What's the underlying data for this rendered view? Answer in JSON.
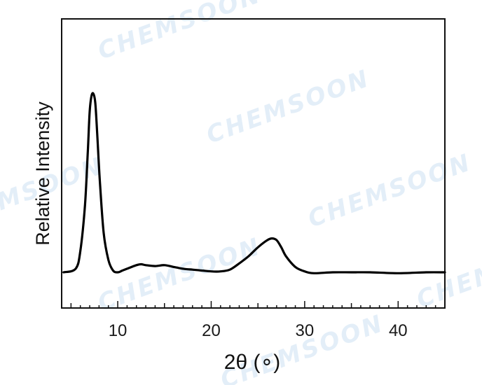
{
  "chart_data": {
    "type": "line",
    "title": "",
    "xlabel": "2θ (∘)",
    "ylabel": "Relative Intensity",
    "xlim": [
      4,
      45
    ],
    "ylim": [
      -0.2,
      1.42
    ],
    "xticks": [
      10,
      20,
      30,
      40
    ],
    "xtick_labels": [
      "10",
      "20",
      "30",
      "40"
    ],
    "y_ticks_shown": false,
    "grid": false,
    "legend": "none",
    "series": [
      {
        "x": [
          4.2,
          5.5,
          6.0,
          6.5,
          6.8,
          7.0,
          7.2,
          7.4,
          7.6,
          7.8,
          8.1,
          8.5,
          9.0,
          9.5,
          10.0,
          10.5,
          11.0,
          12.0,
          12.5,
          13.0,
          14.0,
          15.0,
          16.0,
          17.0,
          18.0,
          19.0,
          20.0,
          21.0,
          22.0,
          23.0,
          24.0,
          25.0,
          26.0,
          26.5,
          27.0,
          27.5,
          28.0,
          29.0,
          30.0,
          31.0,
          33.0,
          35.0,
          37.0,
          40.0,
          43.0,
          45.0
        ],
        "y": [
          0.0,
          0.02,
          0.12,
          0.38,
          0.68,
          0.9,
          0.99,
          1.0,
          0.95,
          0.78,
          0.5,
          0.22,
          0.07,
          0.01,
          0.0,
          0.01,
          0.02,
          0.04,
          0.045,
          0.04,
          0.035,
          0.04,
          0.03,
          0.02,
          0.015,
          0.01,
          0.005,
          0.005,
          0.015,
          0.05,
          0.09,
          0.14,
          0.18,
          0.19,
          0.18,
          0.14,
          0.09,
          0.03,
          0.005,
          -0.005,
          0.0,
          0.0,
          0.0,
          -0.005,
          0.0,
          0.0
        ],
        "color": "#000000"
      }
    ]
  },
  "watermark": "CHEMSOON",
  "colors": {
    "line": "#000000",
    "axis": "#111111",
    "watermark": "#e3eef8"
  }
}
